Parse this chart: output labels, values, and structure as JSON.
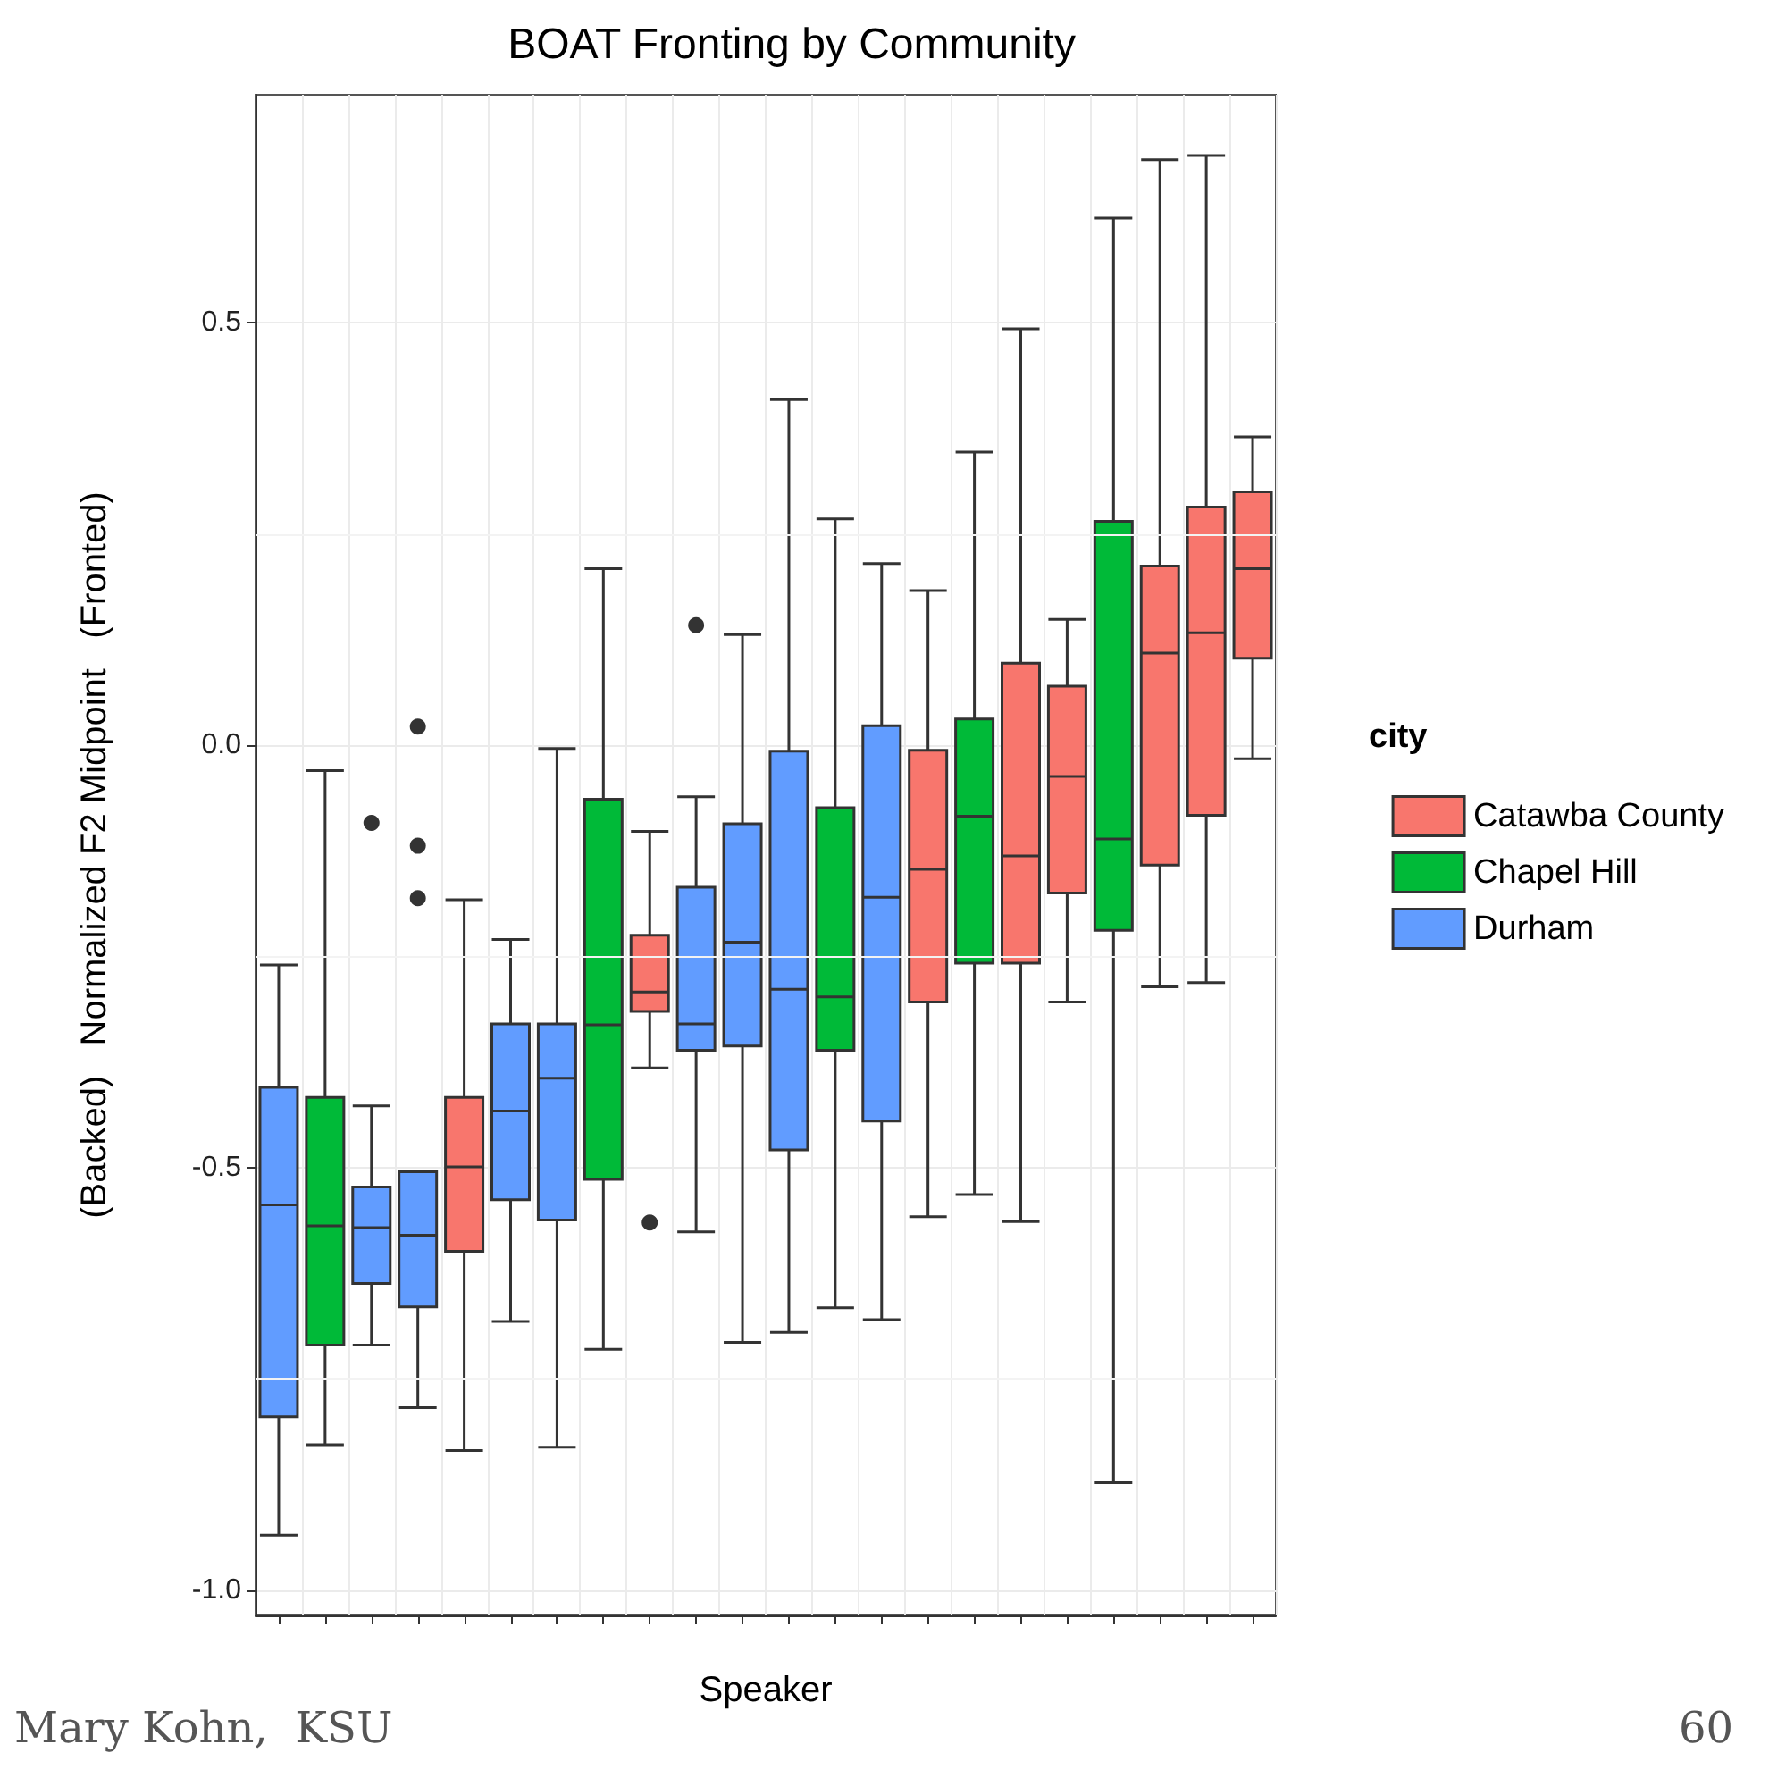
{
  "chart_data": {
    "type": "box",
    "title": "BOAT Fronting by Community",
    "xlabel": "Speaker",
    "ylabel": "(Backed)   Normalized F2 Midpoint   (Fronted)",
    "legend_title": "city",
    "legend": "right",
    "grid": true,
    "categories": [
      null,
      null,
      null,
      null,
      null,
      null,
      null,
      null,
      null,
      null,
      null,
      null,
      null,
      null,
      null,
      null,
      null,
      null,
      null,
      null,
      null,
      null
    ],
    "ylim": [
      -1.03,
      0.77
    ],
    "yticks": [
      {
        "value": -1,
        "label": "-1.0"
      },
      {
        "value": -0.5,
        "label": "-0.5"
      },
      {
        "value": 0,
        "label": "0.0"
      },
      {
        "value": 0.5,
        "label": "0.5"
      }
    ],
    "annotations": [
      "Mary Kohn,  KSU",
      "60"
    ],
    "series": [
      {
        "name": "Catawba County",
        "color": "#f8766d",
        "boxes": [
          null,
          null,
          null,
          null,
          {
            "low": -0.835,
            "q1": -0.599,
            "median": -0.499,
            "q3": -0.417,
            "high": -0.183
          },
          null,
          null,
          null,
          {
            "low": -0.382,
            "q1": -0.315,
            "median": -0.292,
            "q3": -0.225,
            "high": -0.102,
            "outliers": [
              -0.565
            ]
          },
          null,
          null,
          null,
          null,
          null,
          {
            "low": -0.558,
            "q1": -0.304,
            "median": -0.147,
            "q3": -0.006,
            "high": 0.183
          },
          null,
          {
            "low": -0.564,
            "q1": -0.258,
            "median": -0.131,
            "q3": 0.097,
            "high": 0.493
          },
          {
            "low": -0.304,
            "q1": -0.175,
            "median": -0.037,
            "q3": 0.07,
            "high": 0.149
          },
          null,
          {
            "low": -0.286,
            "q1": -0.142,
            "median": 0.109,
            "q3": 0.212,
            "high": 0.693
          },
          {
            "low": -0.281,
            "q1": -0.083,
            "median": 0.133,
            "q3": 0.282,
            "high": 0.698
          },
          {
            "low": -0.016,
            "q1": 0.103,
            "median": 0.209,
            "q3": 0.3,
            "high": 0.365
          }
        ]
      },
      {
        "name": "Chapel Hill",
        "color": "#00ba38",
        "boxes": [
          null,
          {
            "low": -0.828,
            "q1": -0.71,
            "median": -0.569,
            "q3": -0.417,
            "high": -0.03
          },
          null,
          null,
          null,
          null,
          null,
          {
            "low": -0.715,
            "q1": -0.514,
            "median": -0.331,
            "q3": -0.064,
            "high": 0.209
          },
          null,
          null,
          null,
          null,
          {
            "low": -0.666,
            "q1": -0.361,
            "median": -0.298,
            "q3": -0.074,
            "high": 0.268
          },
          null,
          null,
          {
            "low": -0.532,
            "q1": -0.258,
            "median": -0.084,
            "q3": 0.031,
            "high": 0.347
          },
          null,
          null,
          {
            "low": -0.873,
            "q1": -0.219,
            "median": -0.111,
            "q3": 0.265,
            "high": 0.624
          },
          null,
          null,
          null
        ]
      },
      {
        "name": "Durham",
        "color": "#619cff",
        "boxes": [
          {
            "low": -0.935,
            "q1": -0.795,
            "median": -0.544,
            "q3": -0.405,
            "high": -0.26
          },
          null,
          {
            "low": -0.71,
            "q1": -0.637,
            "median": -0.571,
            "q3": -0.523,
            "high": -0.427,
            "outliers": [
              -0.092
            ]
          },
          {
            "low": -0.784,
            "q1": -0.665,
            "median": -0.58,
            "q3": -0.505,
            "high": -0.505,
            "outliers": [
              0.022,
              -0.119,
              -0.181
            ]
          },
          null,
          {
            "low": -0.682,
            "q1": -0.538,
            "median": -0.433,
            "q3": -0.33,
            "high": -0.23
          },
          {
            "low": -0.831,
            "q1": -0.562,
            "median": -0.394,
            "q3": -0.33,
            "high": -0.004
          },
          null,
          null,
          {
            "low": -0.576,
            "q1": -0.361,
            "median": -0.33,
            "q3": -0.168,
            "high": -0.061,
            "outliers": [
              0.142
            ]
          },
          {
            "low": -0.707,
            "q1": -0.356,
            "median": -0.233,
            "q3": -0.093,
            "high": 0.131
          },
          {
            "low": -0.695,
            "q1": -0.479,
            "median": -0.289,
            "q3": -0.007,
            "high": 0.409
          },
          null,
          {
            "low": -0.68,
            "q1": -0.445,
            "median": -0.18,
            "q3": 0.023,
            "high": 0.215
          },
          null,
          null,
          null,
          null,
          null,
          null,
          null,
          null
        ]
      }
    ]
  }
}
